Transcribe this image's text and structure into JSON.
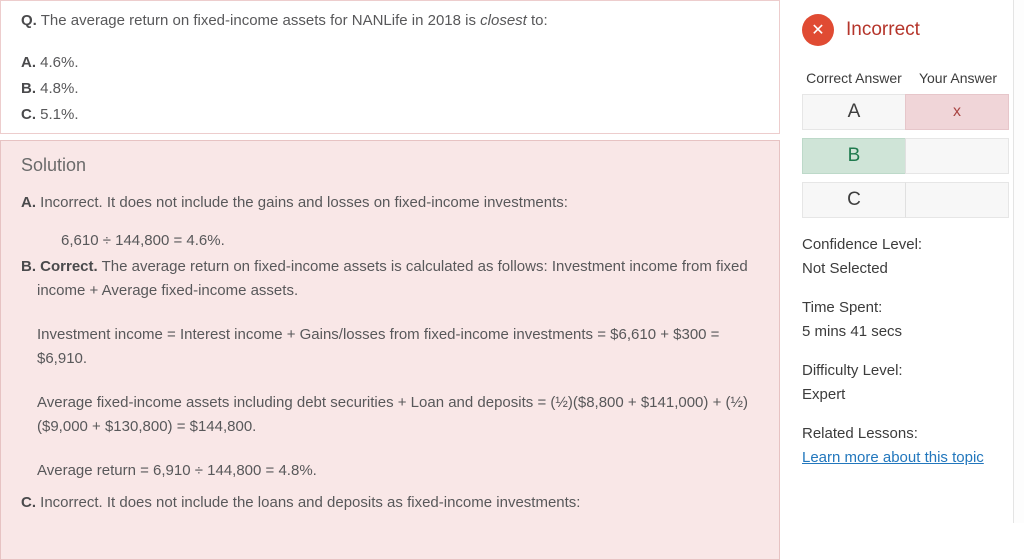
{
  "question": {
    "q_label": "Q.",
    "text_before": "The average return on fixed-income assets for NANLife in 2018 is ",
    "text_italic": "closest",
    "text_after": " to:",
    "options": [
      {
        "letter": "A.",
        "text": "4.6%."
      },
      {
        "letter": "B.",
        "text": "4.8%."
      },
      {
        "letter": "C.",
        "text": "5.1%."
      }
    ]
  },
  "solution": {
    "heading": "Solution",
    "option_a": {
      "letter": "A.",
      "text": "Incorrect. It does not include the gains and losses on fixed-income investments:",
      "formula": "6,610 ÷ 144,800 = 4.6%."
    },
    "option_b": {
      "letter_bold": "B. Correct.",
      "text": "The average return on fixed-income assets is calculated as follows: Investment income from fixed income + Average fixed-income assets.",
      "para_investment": "Investment income = Interest income + Gains/losses from fixed-income investments = $6,610 + $300 = $6,910.",
      "para_average_assets": "Average fixed-income assets including debt securities + Loan and deposits = (½)($8,800 + $141,000) + (½) ($9,000 + $130,800) = $144,800.",
      "para_average_return": "Average return = 6,910 ÷ 144,800 = 4.8%."
    },
    "option_c": {
      "letter": "C.",
      "text": "Incorrect. It does not include the loans and deposits as fixed-income investments:"
    }
  },
  "result": {
    "status": "Incorrect",
    "correct_answer_header": "Correct Answer",
    "your_answer_header": "Your Answer",
    "rows": [
      {
        "letter": "A",
        "your_mark": "x"
      },
      {
        "letter": "B",
        "your_mark": ""
      },
      {
        "letter": "C",
        "your_mark": ""
      }
    ],
    "confidence_label": "Confidence Level:",
    "confidence_value": "Not Selected",
    "time_label": "Time Spent:",
    "time_value": "5 mins 41 secs",
    "difficulty_label": "Difficulty Level:",
    "difficulty_value": "Expert",
    "related_label": "Related Lessons:",
    "related_link_text": "Learn more about this topic"
  },
  "colors": {
    "incorrect_red_text": "#b5352b",
    "incorrect_icon_red": "#e04b33",
    "wrong_cell_bg": "#f0d5d8",
    "wrong_mark_red": "#a94442",
    "correct_cell_bg": "#cfe4d7",
    "correct_letter_green": "#1f7a4e",
    "link_blue": "#2277bd",
    "solution_panel_bg": "#f9e7e7",
    "panel_border_pink": "#edcdcd"
  }
}
